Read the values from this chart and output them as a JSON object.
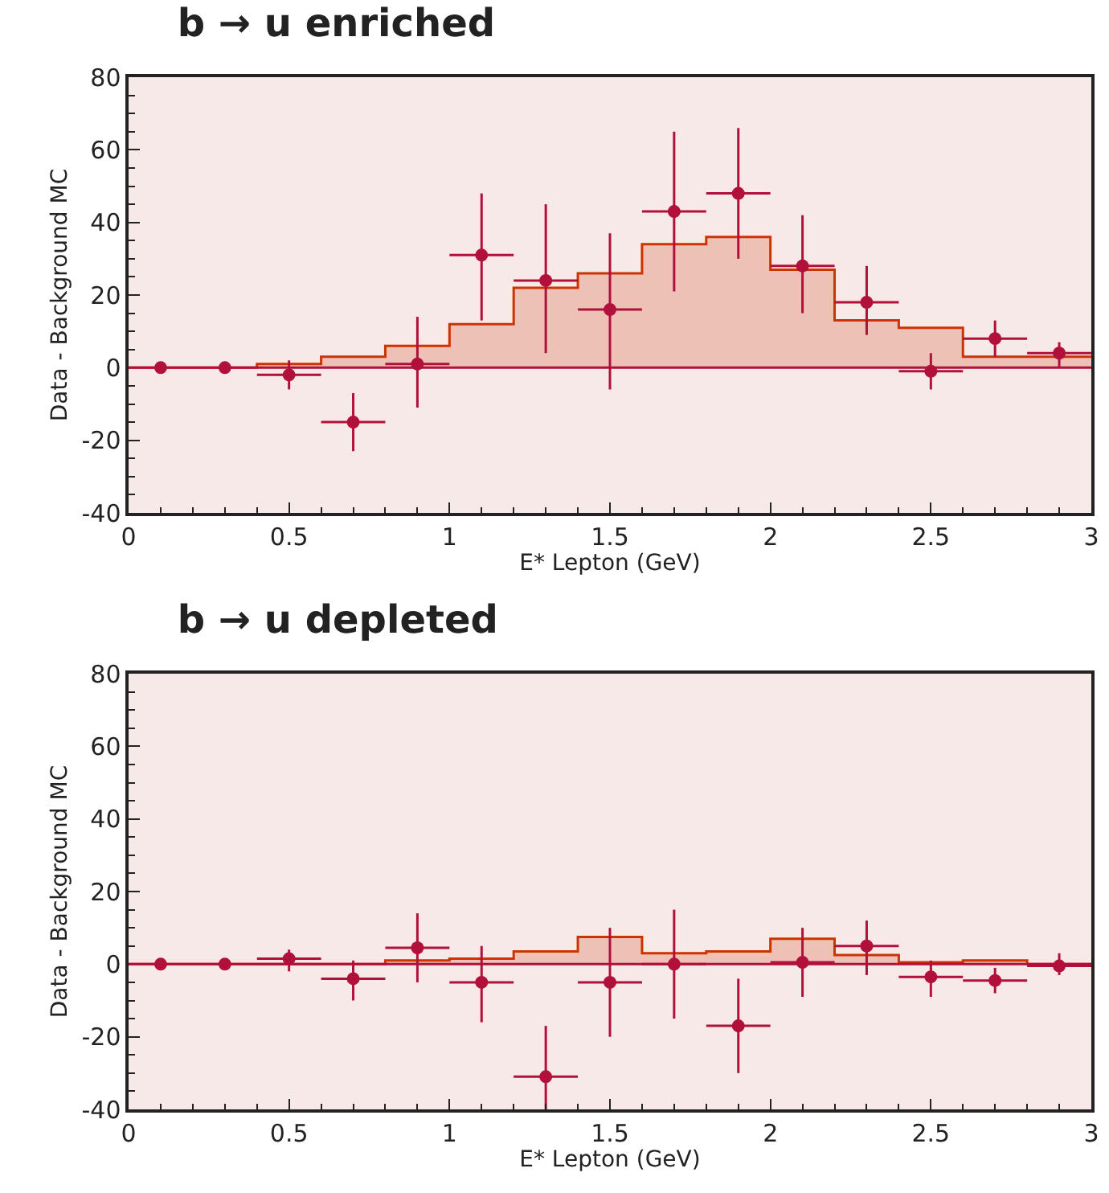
{
  "chart_data": [
    {
      "type": "histogram",
      "title": "b → u enriched",
      "xlabel": "E* Lepton (GeV)",
      "ylabel": "Data - Background MC",
      "xlim": [
        0,
        3
      ],
      "xticks": [
        0,
        0.5,
        1,
        1.5,
        2,
        2.5,
        3
      ],
      "ylim": [
        -40,
        80
      ],
      "yticks": [
        -40,
        -20,
        0,
        20,
        40,
        60,
        80
      ],
      "grid": false,
      "legend": false,
      "ref_lines": [
        {
          "axis": "y",
          "value": 0,
          "color": "#b0103a"
        }
      ],
      "series": [
        {
          "color": "#cc3300",
          "bins": [
            0,
            0.2,
            0.4,
            0.6,
            0.8,
            1,
            1.2,
            1.4,
            1.6,
            1.8,
            2,
            2.2,
            2.4,
            2.6,
            2.8,
            3
          ],
          "values": [
            0,
            0,
            1,
            3,
            6,
            12,
            22,
            26,
            34,
            36,
            27,
            13,
            11,
            3,
            3
          ]
        },
        {
          "type": "scatter",
          "color": "#b0103a",
          "marker": "circle",
          "x": [
            0.1,
            0.3,
            0.5,
            0.7,
            0.9,
            1.1,
            1.3,
            1.5,
            1.7,
            1.9,
            2.1,
            2.3,
            2.5,
            2.7,
            2.9
          ],
          "values": [
            0,
            0,
            -2,
            -15,
            1,
            31,
            24,
            16,
            43,
            48,
            28,
            18,
            -1,
            8,
            4
          ],
          "errors": [
            null,
            null,
            [
              -6,
              2
            ],
            [
              -23,
              -7
            ],
            [
              -11,
              14
            ],
            [
              13,
              48
            ],
            [
              4,
              45
            ],
            [
              -6,
              37
            ],
            [
              21,
              65
            ],
            [
              30,
              66
            ],
            [
              15,
              42
            ],
            [
              9,
              28
            ],
            [
              -6,
              4
            ],
            [
              3,
              13
            ],
            [
              0,
              7
            ]
          ],
          "xerrors": [
            null,
            null,
            0.1,
            0.1,
            0.1,
            0.1,
            0.1,
            0.1,
            0.1,
            0.1,
            0.1,
            0.1,
            0.1,
            0.1,
            0.1
          ]
        }
      ]
    },
    {
      "type": "histogram",
      "title": "b → u depleted",
      "xlabel": "E* Lepton (GeV)",
      "ylabel": "Data - Background MC",
      "xlim": [
        0,
        3
      ],
      "xticks": [
        0,
        0.5,
        1,
        1.5,
        2,
        2.5,
        3
      ],
      "ylim": [
        -40,
        80
      ],
      "yticks": [
        -40,
        -20,
        0,
        20,
        40,
        60,
        80
      ],
      "grid": false,
      "legend": false,
      "ref_lines": [
        {
          "axis": "y",
          "value": 0,
          "color": "#b0103a"
        }
      ],
      "series": [
        {
          "color": "#cc3300",
          "bins": [
            0,
            0.2,
            0.4,
            0.6,
            0.8,
            1,
            1.2,
            1.4,
            1.6,
            1.8,
            2,
            2.2,
            2.4,
            2.6,
            2.8,
            3
          ],
          "values": [
            0,
            0,
            0,
            0,
            1,
            1.5,
            3.5,
            7.5,
            3,
            3.5,
            7,
            2.5,
            0.5,
            1,
            0
          ]
        },
        {
          "type": "scatter",
          "color": "#b0103a",
          "marker": "circle",
          "x": [
            0.1,
            0.3,
            0.5,
            0.7,
            0.9,
            1.1,
            1.3,
            1.5,
            1.7,
            1.9,
            2.1,
            2.3,
            2.5,
            2.7,
            2.9
          ],
          "values": [
            0,
            0,
            1.5,
            -4,
            4.5,
            -5,
            -31,
            -5,
            0,
            -17,
            0.5,
            5,
            -3.5,
            -4.5,
            -0.5
          ],
          "errors": [
            null,
            null,
            [
              -2,
              4
            ],
            [
              -10,
              1
            ],
            [
              -5,
              14
            ],
            [
              -16,
              5
            ],
            [
              -40,
              -17
            ],
            [
              -20,
              10
            ],
            [
              -15,
              15
            ],
            [
              -30,
              -4
            ],
            [
              -9,
              10
            ],
            [
              -3,
              12
            ],
            [
              -9,
              1
            ],
            [
              -8,
              -1
            ],
            [
              -3,
              3
            ]
          ],
          "xerrors": [
            null,
            null,
            0.1,
            0.1,
            0.1,
            0.1,
            0.1,
            0.1,
            0.1,
            0.1,
            0.1,
            0.1,
            0.1,
            0.1,
            0.1
          ]
        }
      ]
    }
  ]
}
